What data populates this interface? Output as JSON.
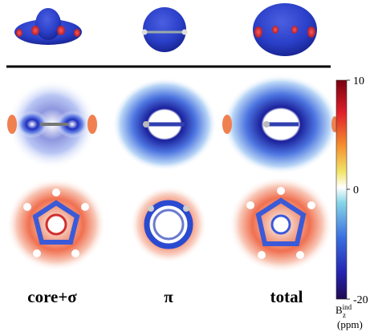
{
  "columns": [
    "core+σ",
    "π",
    "total"
  ],
  "colorbar": {
    "range": [
      -20,
      10
    ],
    "ticks": [
      10,
      0,
      -20
    ],
    "label": "B",
    "label_sup": "ind",
    "label_sub": "z",
    "unit": "(ppm)"
  }
}
